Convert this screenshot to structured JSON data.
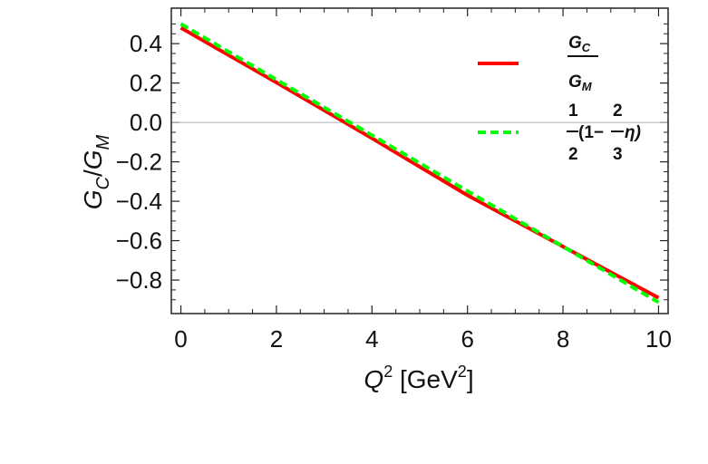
{
  "chart_data": {
    "type": "line",
    "xlabel": {
      "base": "Q",
      "sup": "2",
      "unit_pre": " [GeV",
      "unit_sup": "2",
      "unit_post": "]"
    },
    "ylabel": {
      "g1": "G",
      "s1": "C",
      "slash": "/",
      "g2": "G",
      "s2": "M"
    },
    "xlim": [
      -0.2,
      10.2
    ],
    "ylim": [
      -0.97,
      0.58
    ],
    "xticks": [
      0,
      2,
      4,
      6,
      8,
      10
    ],
    "xtick_labels": [
      "0",
      "2",
      "4",
      "6",
      "8",
      "10"
    ],
    "yticks": [
      0.4,
      0.2,
      0.0,
      -0.2,
      -0.4,
      -0.6,
      -0.8
    ],
    "ytick_labels": [
      "0.4",
      "0.2",
      "0.0",
      "−0.2",
      "−0.4",
      "−0.6",
      "−0.8"
    ],
    "grid": false,
    "zero_line": true,
    "legend_position": "top-right",
    "series": [
      {
        "name_num": "G",
        "name_num_sub": "C",
        "name_den": "G",
        "name_den_sub": "M",
        "color": "#ff0000",
        "style": "solid",
        "x": [
          0,
          2,
          4,
          6,
          8,
          10
        ],
        "y": [
          0.48,
          0.203,
          -0.08,
          -0.37,
          -0.63,
          -0.89
        ]
      },
      {
        "name_frac1_num": "1",
        "name_frac1_den": "2",
        "name_mid": "(1−",
        "name_frac2_num": "2",
        "name_frac2_den": "3",
        "name_tail": "η)",
        "color": "#00ff00",
        "style": "dashed",
        "x": [
          0,
          2,
          4,
          6,
          8,
          10
        ],
        "y": [
          0.5,
          0.217,
          -0.065,
          -0.348,
          -0.63,
          -0.913
        ]
      }
    ]
  }
}
